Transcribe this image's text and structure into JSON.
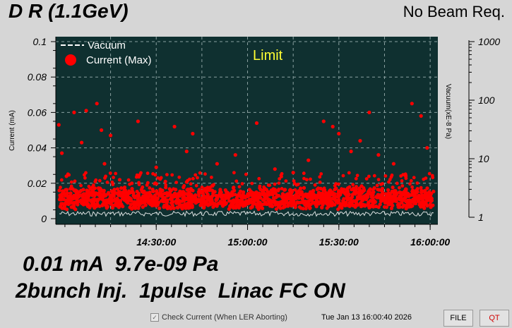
{
  "header": {
    "title": "D R (1.1GeV)",
    "status": "No Beam Req."
  },
  "chart_data": {
    "type": "scatter",
    "x_ticks": [
      "14:30:00",
      "15:00:00",
      "15:30:00",
      "16:00:00"
    ],
    "x_range": [
      "13:57:00",
      "16:00:40"
    ],
    "y_left": {
      "label": "Current (mA)",
      "ticks": [
        "0",
        "0.02",
        "0.04",
        "0.06",
        "0.08",
        "0.1"
      ],
      "range": [
        0,
        0.1
      ]
    },
    "y_right": {
      "label": "Vacuum(xE-8 Pa)",
      "ticks": [
        "1",
        "10",
        "100",
        "1000"
      ],
      "range": [
        1,
        1000
      ],
      "scale": "log"
    },
    "annotation": "Limit",
    "legend": [
      {
        "name": "Vacuum",
        "style": "dashed",
        "color": "#ffffff"
      },
      {
        "name": "Current (Max)",
        "style": "dot",
        "color": "#ff0000"
      }
    ],
    "legend_position": "top-left",
    "grid": true,
    "colors": {
      "plot_bg": "#0f3030",
      "grid": "#8aa0a0",
      "current": "#ff0000",
      "vacuum": "#ffffff",
      "limit": "#ffff33"
    },
    "series": [
      {
        "name": "Current (Max)",
        "band": [
          0.007,
          0.016
        ],
        "outliers": [
          {
            "x": "13:58:00",
            "y": 0.053
          },
          {
            "x": "13:59:00",
            "y": 0.037
          },
          {
            "x": "14:00:30",
            "y": 0.024
          },
          {
            "x": "14:03:00",
            "y": 0.06
          },
          {
            "x": "14:05:30",
            "y": 0.043
          },
          {
            "x": "14:07:00",
            "y": 0.061
          },
          {
            "x": "14:10:30",
            "y": 0.065
          },
          {
            "x": "14:12:00",
            "y": 0.05
          },
          {
            "x": "14:13:00",
            "y": 0.031
          },
          {
            "x": "14:15:00",
            "y": 0.047
          },
          {
            "x": "14:18:00",
            "y": 0.022
          },
          {
            "x": "14:24:00",
            "y": 0.055
          },
          {
            "x": "14:30:00",
            "y": 0.029
          },
          {
            "x": "14:36:00",
            "y": 0.052
          },
          {
            "x": "14:40:00",
            "y": 0.038
          },
          {
            "x": "14:42:00",
            "y": 0.048
          },
          {
            "x": "14:50:00",
            "y": 0.031
          },
          {
            "x": "14:56:00",
            "y": 0.036
          },
          {
            "x": "15:03:00",
            "y": 0.054
          },
          {
            "x": "15:09:00",
            "y": 0.028
          },
          {
            "x": "15:25:00",
            "y": 0.055
          },
          {
            "x": "15:28:00",
            "y": 0.052
          },
          {
            "x": "15:30:00",
            "y": 0.048
          },
          {
            "x": "15:34:00",
            "y": 0.038
          },
          {
            "x": "15:37:00",
            "y": 0.044
          },
          {
            "x": "15:40:00",
            "y": 0.06
          },
          {
            "x": "15:43:00",
            "y": 0.036
          },
          {
            "x": "15:48:00",
            "y": 0.031
          },
          {
            "x": "15:54:00",
            "y": 0.065
          },
          {
            "x": "15:57:00",
            "y": 0.058
          },
          {
            "x": "15:59:00",
            "y": 0.04
          },
          {
            "x": "15:52:00",
            "y": 0.024
          },
          {
            "x": "14:22:00",
            "y": 0.02
          },
          {
            "x": "15:15:00",
            "y": 0.026
          },
          {
            "x": "15:20:00",
            "y": 0.033
          },
          {
            "x": "14:33:00",
            "y": 0.021
          }
        ]
      },
      {
        "name": "Vacuum",
        "level": 1.15
      }
    ]
  },
  "readout": {
    "line1": "0.01 mA  9.7e-09 Pa",
    "line2": "2bunch Inj.  1pulse  Linac FC ON"
  },
  "footer": {
    "checkbox_label": "Check Current (When LER Aborting)",
    "checkbox_checked": true,
    "timestamp": "Tue Jan 13 16:00:40 2026",
    "file_button": "FILE",
    "qt_button": "QT"
  }
}
